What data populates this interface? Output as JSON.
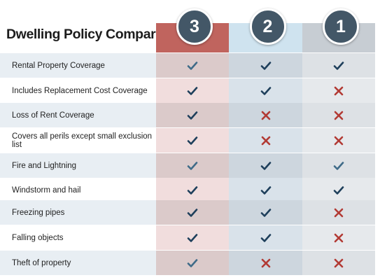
{
  "title": "Dwelling Policy Comparison",
  "columns": [
    {
      "badge": "3",
      "head_color": "#c0645e",
      "light_color": "#f1dddd",
      "dark_color": "#dbcaca",
      "check_color": "#1e3f5b"
    },
    {
      "badge": "2",
      "head_color": "#cfe3ef",
      "light_color": "#d9e2ea",
      "dark_color": "#cdd6de",
      "check_color": "#1e3f5b"
    },
    {
      "badge": "1",
      "head_color": "#c7cdd3",
      "light_color": "#e6e9ec",
      "dark_color": "#dde1e5",
      "check_color": "#1e3f5b"
    }
  ],
  "colors": {
    "label_light": "#ffffff",
    "label_dark": "#e8eef3",
    "check": "#1e3f5b",
    "check_soft": "#3f6b88",
    "cross": "#b23a34"
  },
  "rows": [
    {
      "label": "Rental Property Coverage",
      "marks": [
        "check-soft",
        "check",
        "check"
      ]
    },
    {
      "label": "Includes Replacement Cost Coverage",
      "marks": [
        "check",
        "check",
        "cross"
      ]
    },
    {
      "label": "Loss of Rent Coverage",
      "marks": [
        "check",
        "cross",
        "cross"
      ]
    },
    {
      "label": "Covers all perils except small exclusion list",
      "marks": [
        "check",
        "cross",
        "cross"
      ]
    },
    {
      "label": "Fire and Lightning",
      "marks": [
        "check-soft",
        "check",
        "check-soft"
      ]
    },
    {
      "label": "Windstorm and hail",
      "marks": [
        "check",
        "check",
        "check"
      ]
    },
    {
      "label": "Freezing pipes",
      "marks": [
        "check",
        "check",
        "cross"
      ]
    },
    {
      "label": "Falling objects",
      "marks": [
        "check",
        "check",
        "cross"
      ]
    },
    {
      "label": "Theft of property",
      "marks": [
        "check-soft",
        "cross",
        "cross"
      ]
    }
  ]
}
